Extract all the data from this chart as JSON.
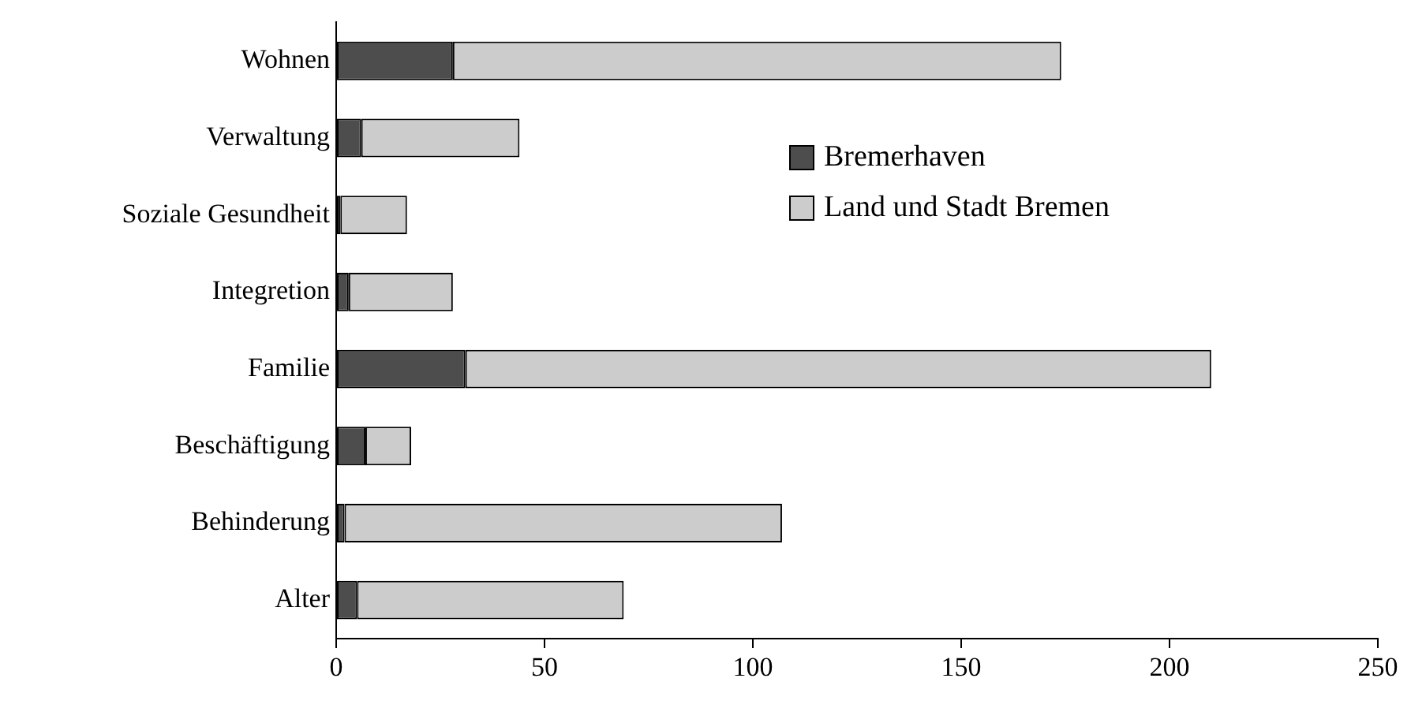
{
  "chart_data": {
    "type": "bar",
    "orientation": "horizontal",
    "stacked": true,
    "categories": [
      "Wohnen",
      "Verwaltung",
      "Soziale Gesundheit",
      "Integretion",
      "Familie",
      "Beschäftigung",
      "Behinderung",
      "Alter"
    ],
    "series": [
      {
        "name": "Bremerhaven",
        "color": "#4d4d4d",
        "values": [
          28,
          6,
          1,
          3,
          31,
          7,
          2,
          5
        ]
      },
      {
        "name": "Land und Stadt Bremen",
        "color": "#cccccc",
        "values": [
          146,
          38,
          16,
          25,
          179,
          11,
          105,
          64
        ]
      }
    ],
    "xlim": [
      0,
      250
    ],
    "xticks": [
      0,
      50,
      100,
      150,
      200,
      250
    ],
    "grid": false,
    "legend": "top right"
  }
}
